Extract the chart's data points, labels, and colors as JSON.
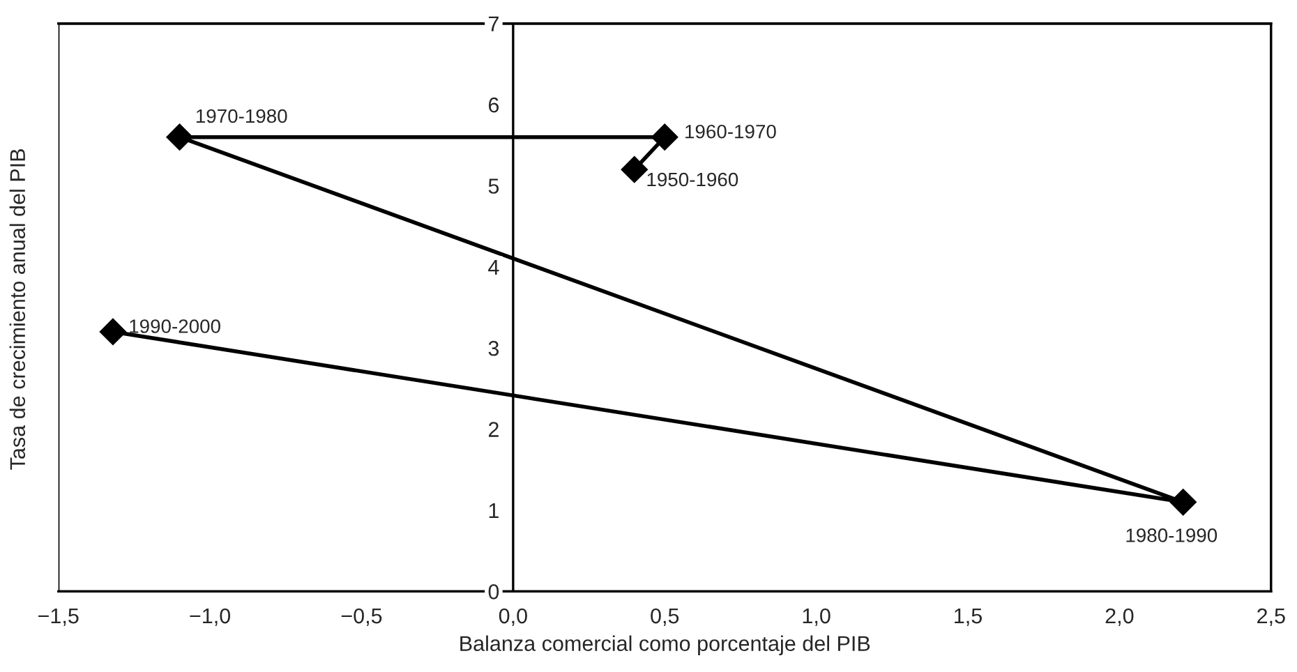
{
  "chart_data": {
    "type": "line",
    "xlabel": "Balanza comercial como porcentaje del PIB",
    "ylabel": "Tasa de crecimiento anual del PIB",
    "x": [
      0.4,
      0.5,
      -1.1,
      2.21,
      -1.32
    ],
    "series": [
      {
        "color": "#000000",
        "values": [
          5.2,
          5.6,
          5.6,
          1.1,
          3.2
        ]
      }
    ],
    "marker": "diamond",
    "line_style": "solid",
    "annotations": [
      {
        "text": "1950-1960",
        "x": 0.4,
        "y": 5.2
      },
      {
        "text": "1960-1970",
        "x": 0.5,
        "y": 5.6
      },
      {
        "text": "1970-1980",
        "x": -1.1,
        "y": 5.6
      },
      {
        "text": "1980-1990",
        "x": 2.21,
        "y": 1.1
      },
      {
        "text": "1990-2000",
        "x": -1.32,
        "y": 3.2
      }
    ],
    "xlim": [
      -1.5,
      2.5
    ],
    "ylim": [
      0,
      7
    ],
    "xticks": [
      {
        "value": -1.5,
        "label": "−1,5"
      },
      {
        "value": -1.0,
        "label": "−1,0"
      },
      {
        "value": -0.5,
        "label": "−0,5"
      },
      {
        "value": 0,
        "label": "0,0"
      },
      {
        "value": 0.5,
        "label": "0,5"
      },
      {
        "value": 1.0,
        "label": "1,0"
      },
      {
        "value": 1.5,
        "label": "1,5"
      },
      {
        "value": 2.0,
        "label": "2,0"
      },
      {
        "value": 2.5,
        "label": "2,5"
      }
    ],
    "yticks": [
      0,
      1,
      2,
      3,
      4,
      5,
      6,
      7
    ],
    "grid": false,
    "legend": false
  }
}
